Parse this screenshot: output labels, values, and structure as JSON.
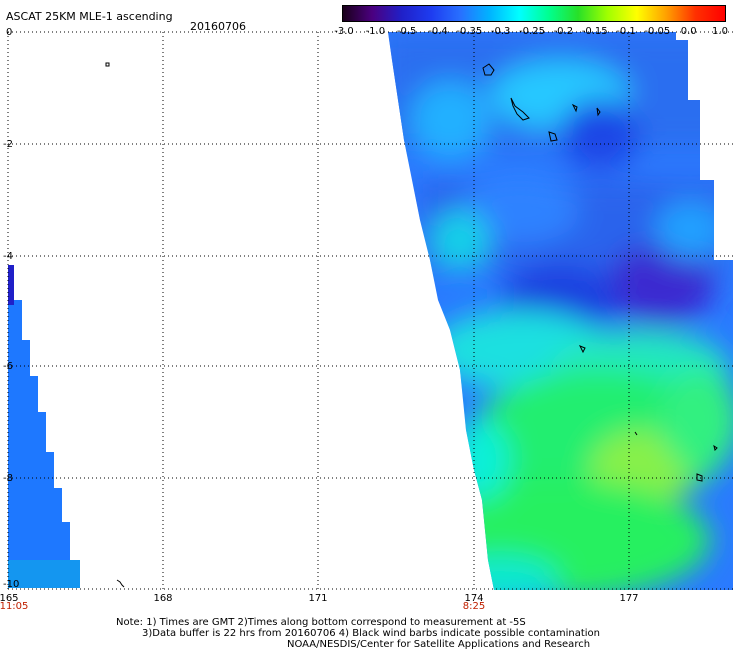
{
  "title": "ASCAT 25KM MLE-1 ascending",
  "date": "20160706",
  "colorbar": {
    "labels": [
      "-3.0",
      "-1.0",
      "-0.5",
      "-0.4",
      "-0.35",
      "-0.3",
      "-0.25",
      "-0.2",
      "-0.15",
      "-0.1",
      "-0.05",
      "0.0",
      "1.0"
    ],
    "colors": [
      "#1a001a",
      "#4b0080",
      "#2020c8",
      "#1e3cf0",
      "#2870ff",
      "#00b4ff",
      "#00ffff",
      "#00ff90",
      "#28e028",
      "#a0ff00",
      "#ffff00",
      "#ffa000",
      "#ff3000",
      "#ff0000"
    ]
  },
  "map": {
    "lat_labels": [
      "0",
      "-2",
      "-4",
      "-6",
      "-8",
      "-10"
    ],
    "lon_labels": [
      "165",
      "168",
      "171",
      "174",
      "177"
    ],
    "time_labels": [
      {
        "lon": "165",
        "time": "11:05"
      },
      {
        "lon": "174",
        "time": "8:25"
      }
    ]
  },
  "notes": [
    "Note: 1) Times are GMT 2)Times along bottom correspond to measurement at -5S",
    "3)Data buffer is 22 hrs from 20160706 4) Black wind barbs indicate possible contamination",
    "NOAA/NESDIS/Center for Satellite Applications and Research"
  ]
}
